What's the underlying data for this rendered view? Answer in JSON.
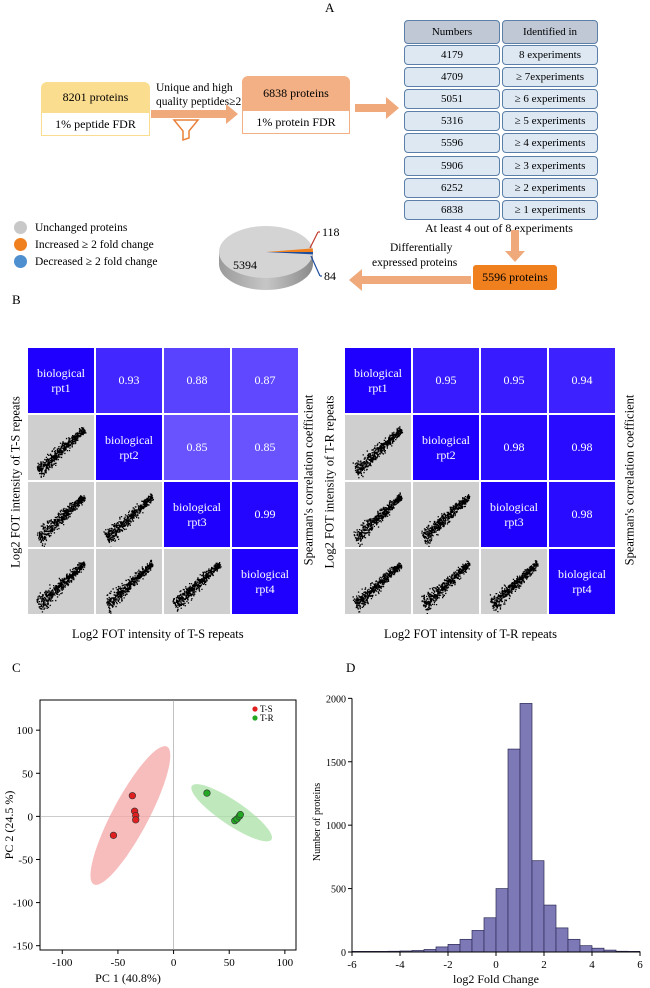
{
  "panelA": {
    "letter": "A",
    "box1": {
      "head": "8201 proteins",
      "body": "1% peptide FDR"
    },
    "arrow_label_1": "Unique and high",
    "arrow_label_2": "quality peptides≥2",
    "box2": {
      "head": "6838 proteins",
      "body": "1% protein FDR"
    },
    "table": {
      "headers": [
        "Numbers",
        "Identified   in"
      ],
      "rows": [
        [
          "4179",
          "8 experiments"
        ],
        [
          "4709",
          "≥ 7experiments"
        ],
        [
          "5051",
          "≥  6 experiments"
        ],
        [
          "5316",
          "≥  5 experiments"
        ],
        [
          "5596",
          "≥  4 experiments"
        ],
        [
          "5906",
          "≥  3 experiments"
        ],
        [
          "6252",
          "≥  2 experiments"
        ],
        [
          "6838",
          "≥  1 experiments"
        ]
      ]
    },
    "at_least": "At least 4 out of 8 experiments",
    "result_box": "5596 proteins",
    "diff_label_1": "Differentially",
    "diff_label_2": "expressed proteins",
    "legend": [
      {
        "label": "Unchanged  proteins",
        "color": "#c8c8c8"
      },
      {
        "label": "Increased ≥ 2 fold change",
        "color": "#f07f1e"
      },
      {
        "label": "Decreased  ≥ 2 fold change",
        "color": "#4d8fcf"
      }
    ],
    "pie": {
      "unchanged": "5394",
      "increased": "118",
      "decreased": "84"
    },
    "colors": {
      "yellow": "#fbdd8f",
      "salmon": "#f3b084",
      "arrow": "#f0a97b",
      "orange": "#f07f1e"
    }
  },
  "panelB": {
    "letter": "B",
    "left": {
      "ylabel": "Log2 FOT intensity of T-S repeats",
      "xlabel": "Log2 FOT intensity of T-S repeats",
      "rlabel": "Spearman's correlation coefficient",
      "diag": [
        "biological rpt1",
        "biological rpt2",
        "biological rpt3",
        "biological rpt4"
      ],
      "upper": [
        [
          "0.93",
          "0.88",
          "0.87"
        ],
        [
          "0.85",
          "0.85"
        ],
        [
          "0.99"
        ]
      ]
    },
    "right": {
      "ylabel": "Log2 FOT intensity of T-R repeats",
      "xlabel": "Log2 FOT intensity of T-R repeats",
      "rlabel": "Spearman's correlation coefficient",
      "diag": [
        "biological rpt1",
        "biological rpt2",
        "biological rpt3",
        "biological rpt4"
      ],
      "upper": [
        [
          "0.95",
          "0.95",
          "0.94"
        ],
        [
          "0.98",
          "0.98"
        ],
        [
          "0.98"
        ]
      ]
    }
  },
  "panelC": {
    "letter": "C",
    "chart_data": {
      "type": "scatter",
      "xlabel": "PC 1 (40.8%)",
      "ylabel": "PC 2 (24.5 %)",
      "xlim": [
        -120,
        110
      ],
      "ylim": [
        -155,
        135
      ],
      "xticks": [
        -100,
        -50,
        0,
        50,
        100
      ],
      "yticks": [
        -150,
        -100,
        -50,
        0,
        50,
        100
      ],
      "legend_position": "top-right",
      "series": [
        {
          "name": "T-S",
          "color": "#e02020",
          "fill": "#f4a6a6",
          "points": [
            [
              -54,
              -22
            ],
            [
              -37,
              24
            ],
            [
              -35,
              6
            ],
            [
              -34,
              1
            ],
            [
              -34,
              -4
            ]
          ]
        },
        {
          "name": "T-R",
          "color": "#22a822",
          "fill": "#a9e2a5",
          "points": [
            [
              30,
              27
            ],
            [
              55,
              -5
            ],
            [
              57,
              -3
            ],
            [
              59,
              0
            ],
            [
              60,
              2
            ]
          ]
        }
      ]
    }
  },
  "panelD": {
    "letter": "D",
    "chart_data": {
      "type": "bar",
      "xlabel": "log2 Fold Change",
      "ylabel": "Number of proteins",
      "xlim": [
        -6,
        6
      ],
      "ylim": [
        0,
        2050
      ],
      "xticks": [
        -6,
        -4,
        -2,
        0,
        2,
        4,
        6
      ],
      "yticks": [
        0,
        500,
        1000,
        1500,
        2000
      ],
      "bin_width": 0.5,
      "bin_start": -6,
      "values": [
        5,
        5,
        5,
        6,
        8,
        12,
        20,
        40,
        60,
        100,
        170,
        270,
        500,
        1600,
        1960,
        720,
        370,
        190,
        100,
        50,
        30,
        15,
        6,
        5
      ],
      "bar_color": "#7d79b7"
    }
  }
}
